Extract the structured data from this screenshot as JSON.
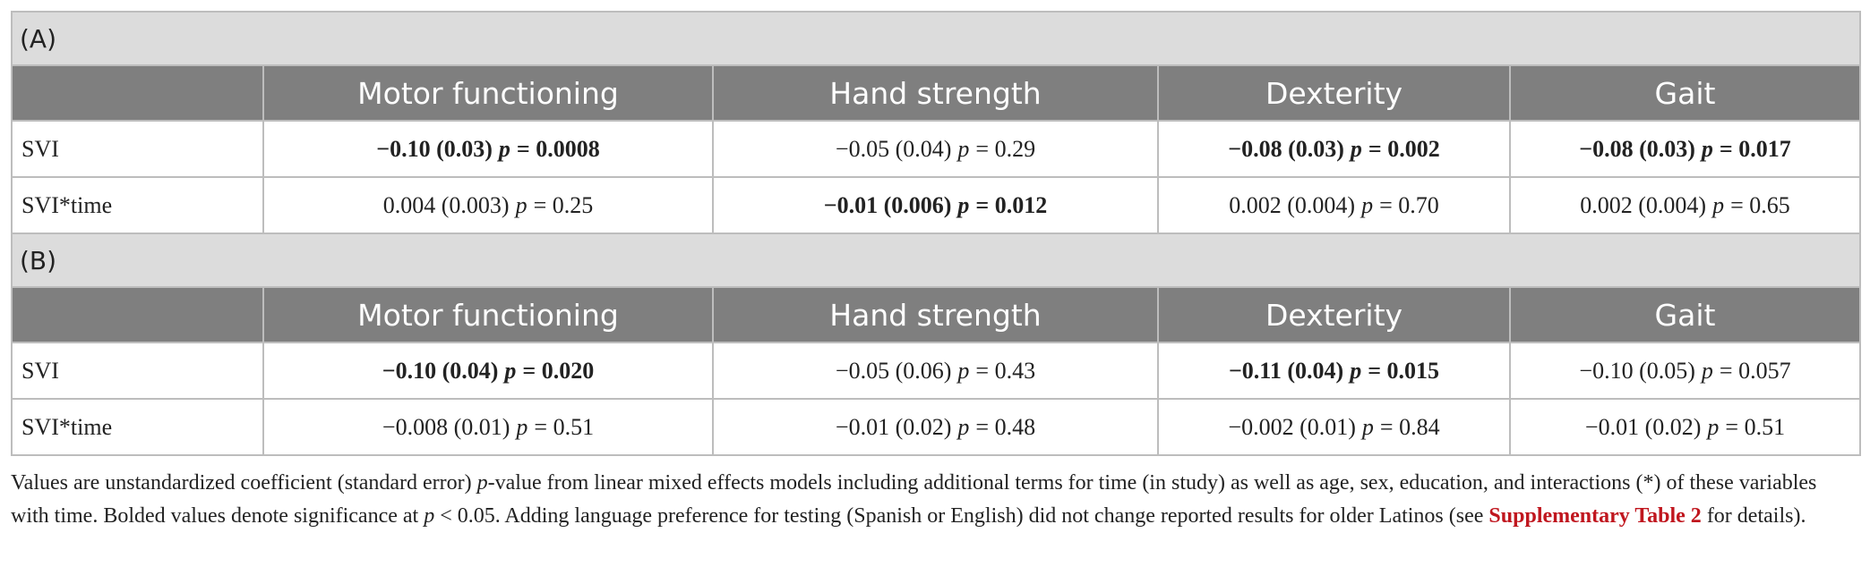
{
  "panels": [
    {
      "label": "(A)",
      "columns": [
        "Motor functioning",
        "Hand strength",
        "Dexterity",
        "Gait"
      ],
      "rows": [
        {
          "label": "SVI",
          "cells": [
            {
              "estimate": "−0.10 (0.03)",
              "p": "p",
              "value": "= 0.0008",
              "bold": true
            },
            {
              "estimate": "−0.05 (0.04)",
              "p": "p",
              "value": "= 0.29",
              "bold": false
            },
            {
              "estimate": "−0.08 (0.03)",
              "p": "p",
              "value": "= 0.002",
              "bold": true
            },
            {
              "estimate": "−0.08 (0.03)",
              "p": "p",
              "value": "= 0.017",
              "bold": true
            }
          ]
        },
        {
          "label": "SVI*time",
          "cells": [
            {
              "estimate": "0.004 (0.003)",
              "p": "p",
              "value": "= 0.25",
              "bold": false
            },
            {
              "estimate": "−0.01 (0.006)",
              "p": "p",
              "value": "= 0.012",
              "bold": true
            },
            {
              "estimate": "0.002 (0.004)",
              "p": "p",
              "value": "= 0.70",
              "bold": false
            },
            {
              "estimate": "0.002 (0.004)",
              "p": "p",
              "value": "= 0.65",
              "bold": false
            }
          ]
        }
      ]
    },
    {
      "label": "(B)",
      "columns": [
        "Motor functioning",
        "Hand strength",
        "Dexterity",
        "Gait"
      ],
      "rows": [
        {
          "label": "SVI",
          "cells": [
            {
              "estimate": "−0.10 (0.04)",
              "p": "p",
              "value": "= 0.020",
              "bold": true
            },
            {
              "estimate": "−0.05 (0.06)",
              "p": "p",
              "value": "= 0.43",
              "bold": false
            },
            {
              "estimate": "−0.11 (0.04)",
              "p": "p",
              "value": "= 0.015",
              "bold": true
            },
            {
              "estimate": "−0.10 (0.05)",
              "p": "p",
              "value": "= 0.057",
              "bold": false
            }
          ]
        },
        {
          "label": "SVI*time",
          "cells": [
            {
              "estimate": "−0.008 (0.01)",
              "p": "p",
              "value": "= 0.51",
              "bold": false
            },
            {
              "estimate": "−0.01 (0.02)",
              "p": "p",
              "value": "= 0.48",
              "bold": false
            },
            {
              "estimate": "−0.002 (0.01)",
              "p": "p",
              "value": "= 0.84",
              "bold": false
            },
            {
              "estimate": "−0.01 (0.02)",
              "p": "p",
              "value": "= 0.51",
              "bold": false
            }
          ]
        }
      ]
    }
  ],
  "footnote": [
    {
      "text": "Values are unstandardized coefficient (standard error) ",
      "style": "plain"
    },
    {
      "text": "p",
      "style": "italic"
    },
    {
      "text": "-value from linear mixed effects models including additional terms for time (in study) as well as age, sex, education, and interactions (*) of these variables with time. Bolded values denote significance at ",
      "style": "plain"
    },
    {
      "text": "p",
      "style": "italic"
    },
    {
      "text": " < 0.05. Adding language preference for testing (Spanish or English) did not change reported results for older Latinos (see ",
      "style": "plain"
    },
    {
      "text": "Supplementary Table 2",
      "style": "link"
    },
    {
      "text": " for details).",
      "style": "plain"
    }
  ]
}
